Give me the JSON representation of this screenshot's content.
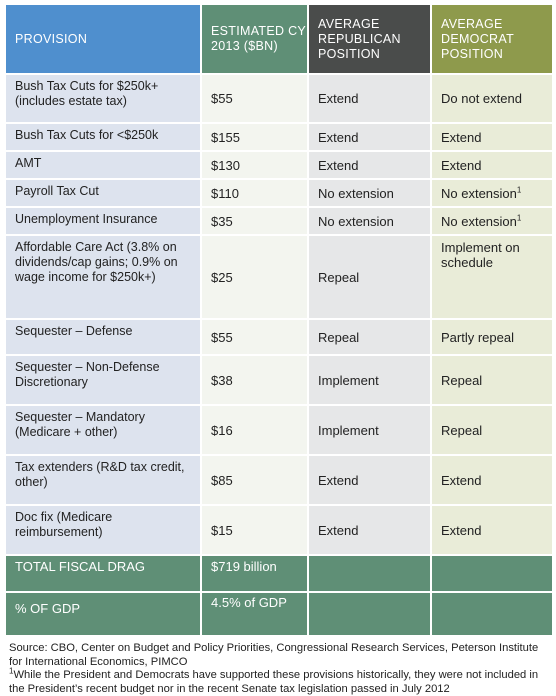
{
  "headers": {
    "provision": "PROVISION",
    "estimated": "ESTIMATED CY 2013 ($BN)",
    "republican": "AVERAGE REPUBLICAN POSITION",
    "democrat": "AVERAGE DEMOCRAT POSITION"
  },
  "rows": [
    {
      "provision": "Bush Tax Cuts for $250k+ (includes estate tax)",
      "estimated": "$55",
      "republican": "Extend",
      "democrat": "Do not extend",
      "note": ""
    },
    {
      "provision": "Bush Tax Cuts for <$250k",
      "estimated": "$155",
      "republican": "Extend",
      "democrat": "Extend",
      "note": ""
    },
    {
      "provision": "AMT",
      "estimated": "$130",
      "republican": "Extend",
      "democrat": "Extend",
      "note": ""
    },
    {
      "provision": "Payroll Tax Cut",
      "estimated": "$110",
      "republican": "No extension",
      "democrat": "No extension",
      "note": "1"
    },
    {
      "provision": "Unemployment Insurance",
      "estimated": "$35",
      "republican": "No extension",
      "democrat": "No extension",
      "note": "1"
    },
    {
      "provision": "Affordable Care Act (3.8% on dividends/cap gains; 0.9% on wage income for $250k+)",
      "estimated": "$25",
      "republican": "Repeal",
      "democrat": "Implement on schedule",
      "note": ""
    },
    {
      "provision": "Sequester – Defense",
      "estimated": "$55",
      "republican": "Repeal",
      "democrat": "Partly repeal",
      "note": ""
    },
    {
      "provision": "Sequester – Non-Defense Discretionary",
      "estimated": "$38",
      "republican": "Implement",
      "democrat": "Repeal",
      "note": ""
    },
    {
      "provision": "Sequester – Mandatory (Medicare + other)",
      "estimated": "$16",
      "republican": "Implement",
      "democrat": "Repeal",
      "note": ""
    },
    {
      "provision": "Tax extenders (R&D tax credit, other)",
      "estimated": "$85",
      "republican": "Extend",
      "democrat": "Extend",
      "note": ""
    },
    {
      "provision": "Doc fix (Medicare reimbursement)",
      "estimated": "$15",
      "republican": "Extend",
      "democrat": "Extend",
      "note": ""
    }
  ],
  "total": {
    "label": "TOTAL FISCAL DRAG",
    "value": "$719 billion"
  },
  "gdp": {
    "label": "% OF GDP",
    "value": "4.5% of GDP"
  },
  "source": "Source: CBO, Center on Budget and Policy Priorities, Congressional Research Services, Peterson Institute for International Economics, PIMCO",
  "footnote": {
    "marker": "1",
    "text": "While the President and Democrats have supported these provisions historically, they were not included in the President’s recent budget nor in the recent Senate tax legislation passed in July 2012"
  },
  "colors": {
    "provision_header": "#4f8fce",
    "estimated_header": "#5f8f76",
    "republican_header": "#4a4c4b",
    "democrat_header": "#8e9a4c"
  }
}
